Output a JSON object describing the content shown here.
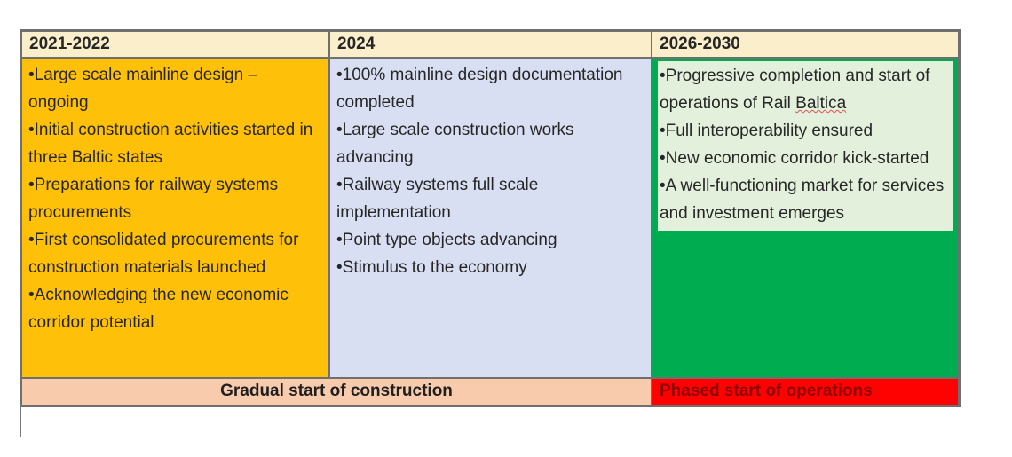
{
  "table": {
    "columns": [
      {
        "header": "2021-2022",
        "items": [
          "•Large scale mainline design – ongoing",
          "•Initial construction activities started in three Baltic states",
          "•Preparations for railway systems procurements",
          "•First consolidated procurements for construction materials launched",
          "•Acknowledging the new economic corridor potential"
        ]
      },
      {
        "header": "2024",
        "items": [
          "•100% mainline design documentation completed",
          "•Large scale construction works advancing",
          "•Railway systems full scale implementation",
          "•Point type objects advancing",
          "•Stimulus to the economy"
        ]
      },
      {
        "header": "2026-2030",
        "first_item_prefix": "•Progressive completion and start of operations of Rail ",
        "first_item_flagged_word": "Baltica",
        "items": [
          "•Full interoperability ensured",
          "•New economic corridor kick-started",
          "•A well-functioning market for services and investment emerges"
        ]
      }
    ],
    "footer": {
      "left": "Gradual start of construction",
      "right": "Phased start of operations"
    }
  },
  "colors": {
    "header_bg": "#FBEFCB",
    "col1_bg": "#FEC008",
    "col2_bg": "#D9DFF2",
    "col3_frame_bg": "#00AC50",
    "col3_inner_bg": "#E3F0DC",
    "footer_left_bg": "#F8CBAD",
    "footer_right_bg": "#FE0101",
    "footer_right_text": "#8F0000",
    "border": "#6f6f6f",
    "spellcheck_underline": "#e05252"
  }
}
